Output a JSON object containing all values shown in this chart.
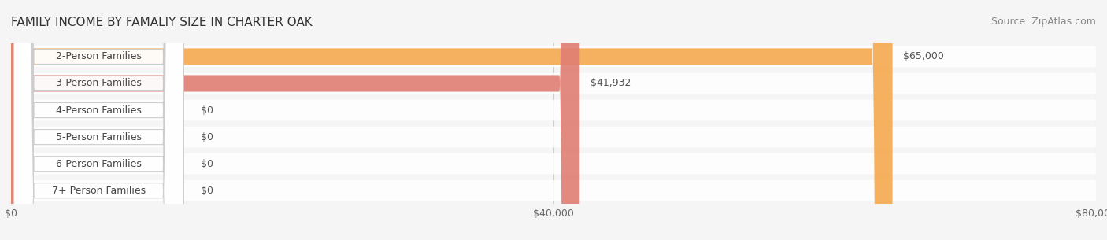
{
  "title": "FAMILY INCOME BY FAMALIY SIZE IN CHARTER OAK",
  "source": "Source: ZipAtlas.com",
  "categories": [
    "2-Person Families",
    "3-Person Families",
    "4-Person Families",
    "5-Person Families",
    "6-Person Families",
    "7+ Person Families"
  ],
  "values": [
    65000,
    41932,
    0,
    0,
    0,
    0
  ],
  "bar_colors": [
    "#F5A94E",
    "#E07D72",
    "#A8BDE3",
    "#C9A8D4",
    "#6DC5B8",
    "#B0B8E8"
  ],
  "label_colors": [
    "#F5A94E",
    "#E07D72",
    "#A8BDE3",
    "#C9A8D4",
    "#6DC5B8",
    "#B0B8E8"
  ],
  "value_labels": [
    "$65,000",
    "$41,932",
    "$0",
    "$0",
    "$0",
    "$0"
  ],
  "xlim": [
    0,
    80000
  ],
  "xticks": [
    0,
    40000,
    80000
  ],
  "xtick_labels": [
    "$0",
    "$40,000",
    "$80,000"
  ],
  "background_color": "#f5f5f5",
  "bar_bg_color": "#e8e8e8",
  "title_fontsize": 11,
  "source_fontsize": 9,
  "label_fontsize": 9,
  "value_fontsize": 9
}
